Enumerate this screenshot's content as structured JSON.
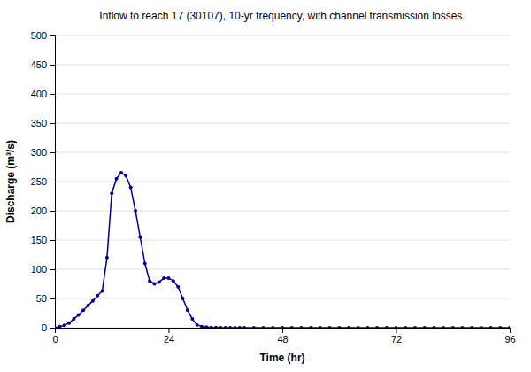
{
  "chart_data": {
    "type": "line",
    "title": "Inflow to reach 17 (30107), 10-yr frequency, with channel transmission losses.",
    "xlabel": "Time (hr)",
    "ylabel": "Discharge (m³/s)",
    "x": [
      0,
      1,
      2,
      3,
      4,
      5,
      6,
      7,
      8,
      9,
      10,
      11,
      12,
      13,
      14,
      15,
      16,
      17,
      18,
      19,
      20,
      21,
      22,
      23,
      24,
      25,
      26,
      27,
      28,
      29,
      30,
      31,
      32,
      33,
      34,
      35,
      36,
      37,
      38,
      39,
      40,
      42,
      44,
      46,
      48,
      50,
      52,
      54,
      56,
      58,
      60,
      62,
      64,
      66,
      68,
      70,
      72,
      74,
      76,
      78,
      80,
      82,
      84,
      86,
      88,
      90,
      92,
      94,
      96
    ],
    "values": [
      0,
      2,
      4,
      8,
      15,
      22,
      30,
      38,
      46,
      55,
      63,
      120,
      230,
      255,
      265,
      260,
      240,
      200,
      155,
      110,
      80,
      75,
      78,
      85,
      85,
      80,
      70,
      50,
      30,
      15,
      5,
      2,
      1,
      0.5,
      0.2,
      0.1,
      0,
      0,
      0,
      0,
      0,
      0,
      0,
      0,
      0,
      0,
      0,
      0,
      0,
      0,
      0,
      0,
      0,
      0,
      0,
      0,
      0,
      0,
      0,
      0,
      0,
      0,
      0,
      0,
      0,
      0,
      0,
      0,
      0
    ],
    "color": "#00008b",
    "marker": "point",
    "xlim": [
      0,
      96
    ],
    "ylim": [
      0,
      500
    ],
    "xticks": [
      0,
      24,
      48,
      72,
      96
    ],
    "yticks": [
      0,
      50,
      100,
      150,
      200,
      250,
      300,
      350,
      400,
      450,
      500
    ],
    "grid": "y"
  }
}
